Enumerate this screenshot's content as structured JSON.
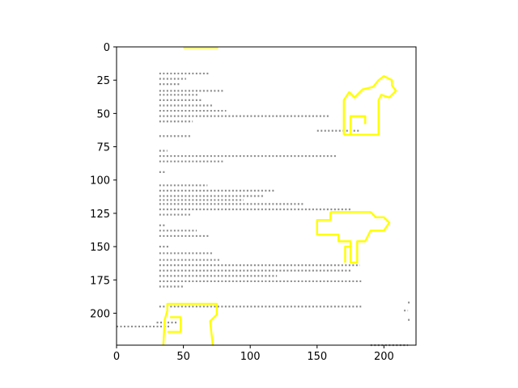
{
  "chart_data": {
    "type": "heatmap",
    "title": "",
    "xlabel": "",
    "ylabel": "",
    "xlim": [
      0,
      224
    ],
    "ylim": [
      224,
      0
    ],
    "x_ticks": [
      0,
      50,
      100,
      150,
      200
    ],
    "x_tick_labels": [
      "0",
      "50",
      "100",
      "150",
      "200"
    ],
    "y_ticks": [
      0,
      25,
      50,
      75,
      100,
      125,
      150,
      175,
      200
    ],
    "y_tick_labels": [
      "0",
      "25",
      "50",
      "75",
      "100",
      "125",
      "150",
      "175",
      "200"
    ],
    "grid": false,
    "content": "scanned document page rendered as an image; grey text strokes with yellow outlined highlight regions",
    "colors": {
      "text_strokes": "#8c8c8c",
      "highlight_outline": "#ffff00",
      "background": "#ffffff",
      "axis": "#000000"
    }
  }
}
